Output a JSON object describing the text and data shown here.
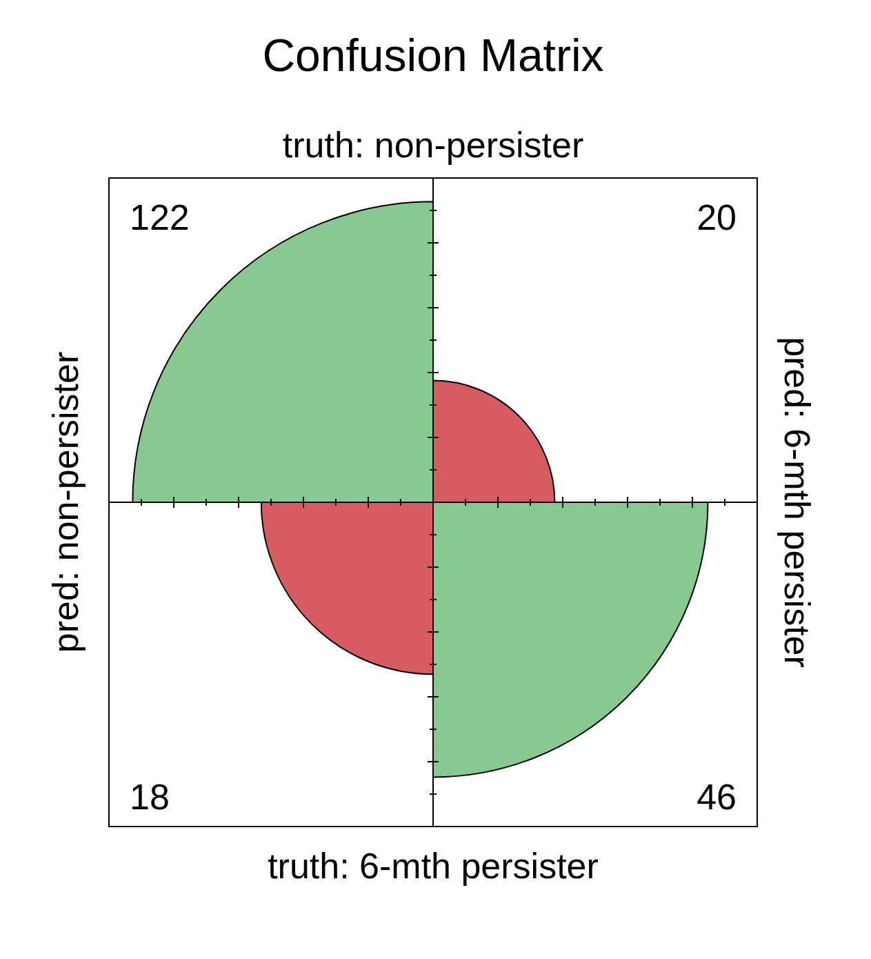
{
  "chart_data": {
    "type": "other",
    "title": "Confusion Matrix",
    "categories": [
      null,
      null,
      null,
      null
    ],
    "values": [
      122,
      20,
      18,
      46
    ],
    "colors": [
      "#88c991",
      "#d65c62",
      "#d65c62",
      "#88c991"
    ],
    "annotations": [
      "truth: non-persister",
      "truth: 6-mth persister",
      "pred: non-persister",
      "pred: 6-mth persister"
    ],
    "data_labels": true
  }
}
